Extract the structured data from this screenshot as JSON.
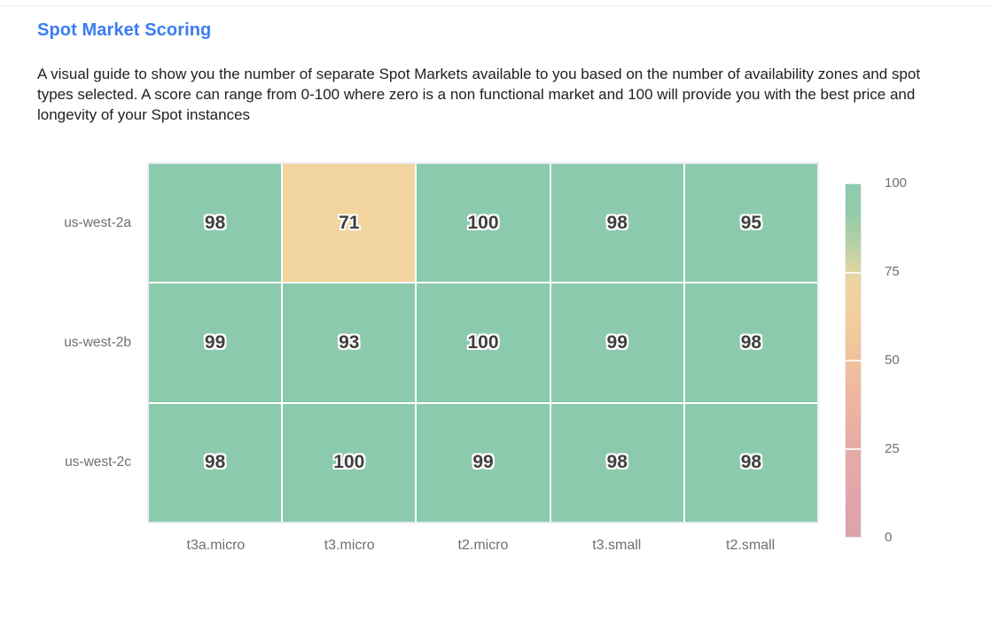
{
  "theme": {
    "page-bg": "#ffffff",
    "title-color": "#3b7cf2",
    "text-color": "#202124",
    "label-color": "#6f6f6f",
    "cell-text-color": "#3f3f3f",
    "grid-border": "#eceef5",
    "divider": "#e9e9e9"
  },
  "header": {
    "title": "Spot Market Scoring",
    "description": "A visual guide to show you the number of separate Spot Markets available to you based on the number of availability zones and spot types selected. A score can range from 0-100 where zero is a non functional market and 100 will provide you with the best price and longevity of your Spot instances"
  },
  "chart_data": {
    "type": "heatmap",
    "title": "Spot Market Scoring",
    "rows": [
      "us-west-2a",
      "us-west-2b",
      "us-west-2c"
    ],
    "columns": [
      "t3a.micro",
      "t3.micro",
      "t2.micro",
      "t3.small",
      "t2.small"
    ],
    "values": [
      [
        98,
        71,
        100,
        98,
        95
      ],
      [
        99,
        93,
        100,
        99,
        98
      ],
      [
        98,
        100,
        99,
        98,
        98
      ]
    ],
    "value_range": [
      0,
      100
    ],
    "grid": true,
    "cell_color_pieces": [
      {
        "min": 80,
        "color": "#8ccaad"
      },
      {
        "min": 55,
        "color": "#f2d49e"
      },
      {
        "min": 30,
        "color": "#f0bf9b"
      },
      {
        "min": 0,
        "color": "#e0a4ab"
      }
    ],
    "colorbar": {
      "position": "right",
      "ticks": [
        100,
        75,
        50,
        25,
        0
      ],
      "tick_line_positions_pct": [
        25,
        50,
        75
      ],
      "gradient_stops": [
        {
          "pos": 0,
          "color": "#8ccbae"
        },
        {
          "pos": 8,
          "color": "#93ccab"
        },
        {
          "pos": 17,
          "color": "#b5d0a5"
        },
        {
          "pos": 24,
          "color": "#ddd5a1"
        },
        {
          "pos": 28,
          "color": "#eed59f"
        },
        {
          "pos": 35,
          "color": "#f2d19d"
        },
        {
          "pos": 50,
          "color": "#f0c19c"
        },
        {
          "pos": 62,
          "color": "#edb59e"
        },
        {
          "pos": 75,
          "color": "#e7aba6"
        },
        {
          "pos": 88,
          "color": "#e1a6aa"
        },
        {
          "pos": 100,
          "color": "#dca3ad"
        }
      ]
    }
  }
}
